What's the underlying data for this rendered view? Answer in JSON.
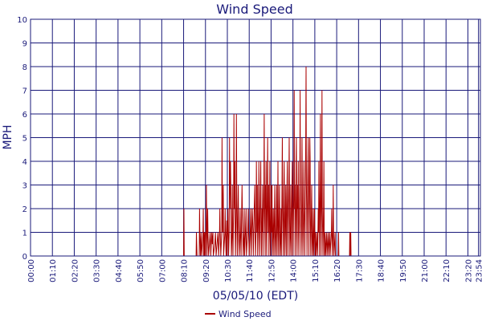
{
  "chart_data": {
    "type": "line",
    "title": "Wind Speed",
    "xlabel": "05/05/10 (EDT)",
    "ylabel": "MPH",
    "ylim": [
      0,
      10
    ],
    "yticks": [
      "0",
      "1",
      "2",
      "3",
      "4",
      "5",
      "6",
      "7",
      "8",
      "9",
      "10"
    ],
    "xticks": [
      "00:00",
      "01:10",
      "02:20",
      "03:30",
      "04:40",
      "05:50",
      "07:00",
      "08:10",
      "09:20",
      "10:30",
      "11:40",
      "12:50",
      "14:00",
      "15:10",
      "16:20",
      "17:30",
      "18:40",
      "19:50",
      "21:00",
      "22:10",
      "23:20",
      "23:54"
    ],
    "grid": true,
    "legend": "bottom-center",
    "colors": {
      "line": "#aa0000",
      "grid": "#1a1a7a",
      "text": "#1a1a7a"
    },
    "series": [
      {
        "name": "Wind Speed",
        "x_unit": "minutes since 00:00",
        "points": [
          [
            0,
            0
          ],
          [
            490,
            0
          ],
          [
            491,
            2
          ],
          [
            492,
            0
          ],
          [
            530,
            0
          ],
          [
            531,
            1
          ],
          [
            533,
            0
          ],
          [
            540,
            0
          ],
          [
            541,
            2
          ],
          [
            542,
            1
          ],
          [
            544,
            0
          ],
          [
            546,
            1
          ],
          [
            548,
            0
          ],
          [
            552,
            1
          ],
          [
            553,
            2
          ],
          [
            554,
            0
          ],
          [
            556,
            1
          ],
          [
            557,
            0
          ],
          [
            559,
            1
          ],
          [
            560,
            0
          ],
          [
            562,
            1.5
          ],
          [
            563,
            3
          ],
          [
            564,
            1
          ],
          [
            565,
            0
          ],
          [
            567,
            2
          ],
          [
            568,
            1
          ],
          [
            570,
            0
          ],
          [
            575,
            1
          ],
          [
            577,
            0
          ],
          [
            580,
            1
          ],
          [
            582,
            0.5
          ],
          [
            584,
            1
          ],
          [
            585,
            0
          ],
          [
            590,
            0.5
          ],
          [
            592,
            1
          ],
          [
            594,
            0
          ],
          [
            600,
            1
          ],
          [
            602,
            0
          ],
          [
            605,
            1
          ],
          [
            606,
            2
          ],
          [
            607,
            1
          ],
          [
            609,
            0
          ],
          [
            612,
            1
          ],
          [
            613,
            5
          ],
          [
            614,
            2
          ],
          [
            615,
            1
          ],
          [
            617,
            3
          ],
          [
            618,
            0
          ],
          [
            622,
            1
          ],
          [
            623,
            2
          ],
          [
            624,
            1
          ],
          [
            626,
            0
          ],
          [
            628,
            1.5
          ],
          [
            629,
            0
          ],
          [
            632,
            2
          ],
          [
            633,
            1
          ],
          [
            634,
            0
          ],
          [
            636,
            1
          ],
          [
            637,
            5
          ],
          [
            638,
            2
          ],
          [
            640,
            4
          ],
          [
            641,
            3
          ],
          [
            642,
            1
          ],
          [
            643,
            0
          ],
          [
            645,
            1
          ],
          [
            646,
            3
          ],
          [
            647,
            1
          ],
          [
            648,
            0
          ],
          [
            650,
            2
          ],
          [
            651,
            6
          ],
          [
            652,
            3
          ],
          [
            653,
            2
          ],
          [
            654,
            4
          ],
          [
            655,
            1
          ],
          [
            656,
            0
          ],
          [
            658,
            2
          ],
          [
            659,
            6
          ],
          [
            660,
            3
          ],
          [
            661,
            1
          ],
          [
            662,
            0
          ],
          [
            664,
            2
          ],
          [
            665,
            3
          ],
          [
            666,
            1
          ],
          [
            668,
            0
          ],
          [
            670,
            1
          ],
          [
            671,
            2
          ],
          [
            672,
            1
          ],
          [
            674,
            0
          ],
          [
            676,
            2
          ],
          [
            677,
            3
          ],
          [
            678,
            2
          ],
          [
            679,
            1
          ],
          [
            681,
            0
          ],
          [
            683,
            1
          ],
          [
            684,
            2
          ],
          [
            685,
            0
          ],
          [
            688,
            1
          ],
          [
            690,
            2
          ],
          [
            691,
            0
          ],
          [
            695,
            1
          ],
          [
            697,
            2
          ],
          [
            698,
            1
          ],
          [
            700,
            0
          ],
          [
            703,
            1
          ],
          [
            705,
            2
          ],
          [
            706,
            0
          ],
          [
            710,
            2
          ],
          [
            712,
            1
          ],
          [
            713,
            0
          ],
          [
            716,
            2
          ],
          [
            718,
            3
          ],
          [
            719,
            1
          ],
          [
            720,
            0
          ],
          [
            722,
            1
          ],
          [
            723,
            4
          ],
          [
            724,
            2
          ],
          [
            725,
            1
          ],
          [
            726,
            3
          ],
          [
            727,
            0
          ],
          [
            730,
            2
          ],
          [
            731,
            4
          ],
          [
            732,
            1
          ],
          [
            733,
            0
          ],
          [
            735,
            2
          ],
          [
            736,
            3
          ],
          [
            737,
            4
          ],
          [
            738,
            1
          ],
          [
            739,
            0
          ],
          [
            741,
            2
          ],
          [
            742,
            1
          ],
          [
            743,
            3
          ],
          [
            744,
            0
          ],
          [
            746,
            2
          ],
          [
            747,
            3
          ],
          [
            748,
            6
          ],
          [
            749,
            2
          ],
          [
            750,
            1
          ],
          [
            751,
            0
          ],
          [
            752,
            3
          ],
          [
            753,
            2
          ],
          [
            754,
            4
          ],
          [
            755,
            1
          ],
          [
            756,
            0
          ],
          [
            758,
            3
          ],
          [
            759,
            5
          ],
          [
            760,
            2
          ],
          [
            761,
            1
          ],
          [
            762,
            3
          ],
          [
            763,
            0
          ],
          [
            765,
            2
          ],
          [
            766,
            4
          ],
          [
            767,
            1
          ],
          [
            768,
            0
          ],
          [
            770,
            2
          ],
          [
            771,
            3
          ],
          [
            772,
            1
          ],
          [
            773,
            3
          ],
          [
            774,
            0
          ],
          [
            776,
            1
          ],
          [
            777,
            2
          ],
          [
            778,
            1
          ],
          [
            779,
            0
          ],
          [
            781,
            2
          ],
          [
            782,
            3
          ],
          [
            783,
            1
          ],
          [
            784,
            0
          ],
          [
            786,
            1
          ],
          [
            787,
            2
          ],
          [
            788,
            3
          ],
          [
            789,
            0
          ],
          [
            791,
            2
          ],
          [
            792,
            4
          ],
          [
            793,
            1
          ],
          [
            794,
            0
          ],
          [
            796,
            2
          ],
          [
            797,
            3
          ],
          [
            798,
            1
          ],
          [
            799,
            0
          ],
          [
            801,
            1
          ],
          [
            802,
            2
          ],
          [
            803,
            0
          ],
          [
            805,
            3
          ],
          [
            806,
            5
          ],
          [
            807,
            2
          ],
          [
            808,
            1
          ],
          [
            809,
            0
          ],
          [
            811,
            3
          ],
          [
            812,
            4
          ],
          [
            813,
            1
          ],
          [
            814,
            0
          ],
          [
            816,
            2
          ],
          [
            817,
            3
          ],
          [
            818,
            1
          ],
          [
            819,
            0
          ],
          [
            821,
            3
          ],
          [
            822,
            4
          ],
          [
            823,
            2
          ],
          [
            824,
            0
          ],
          [
            826,
            2
          ],
          [
            827,
            3
          ],
          [
            828,
            5
          ],
          [
            829,
            2
          ],
          [
            830,
            0
          ],
          [
            832,
            1
          ],
          [
            833,
            3
          ],
          [
            834,
            1
          ],
          [
            835,
            0
          ],
          [
            837,
            3
          ],
          [
            838,
            4
          ],
          [
            839,
            2
          ],
          [
            840,
            0
          ],
          [
            842,
            2
          ],
          [
            843,
            3
          ],
          [
            844,
            7
          ],
          [
            845,
            2
          ],
          [
            846,
            3
          ],
          [
            847,
            0
          ],
          [
            849,
            2
          ],
          [
            850,
            4
          ],
          [
            851,
            5
          ],
          [
            852,
            1
          ],
          [
            853,
            0
          ],
          [
            855,
            3
          ],
          [
            856,
            2
          ],
          [
            857,
            4
          ],
          [
            858,
            1
          ],
          [
            859,
            0
          ],
          [
            861,
            2
          ],
          [
            862,
            3
          ],
          [
            863,
            7
          ],
          [
            864,
            2
          ],
          [
            865,
            1
          ],
          [
            866,
            0
          ],
          [
            868,
            2
          ],
          [
            869,
            5
          ],
          [
            870,
            3
          ],
          [
            871,
            1
          ],
          [
            872,
            0
          ],
          [
            874,
            2
          ],
          [
            875,
            4
          ],
          [
            876,
            2
          ],
          [
            877,
            1
          ],
          [
            878,
            0
          ],
          [
            880,
            3
          ],
          [
            881,
            5
          ],
          [
            882,
            8
          ],
          [
            883,
            3
          ],
          [
            884,
            2
          ],
          [
            885,
            0
          ],
          [
            887,
            3
          ],
          [
            888,
            4
          ],
          [
            889,
            5
          ],
          [
            890,
            2
          ],
          [
            891,
            0
          ],
          [
            893,
            3
          ],
          [
            894,
            5
          ],
          [
            895,
            4
          ],
          [
            896,
            1
          ],
          [
            897,
            0
          ],
          [
            899,
            2
          ],
          [
            900,
            3
          ],
          [
            901,
            1
          ],
          [
            902,
            0
          ],
          [
            904,
            1
          ],
          [
            905,
            2
          ],
          [
            906,
            0
          ],
          [
            908,
            1
          ],
          [
            909,
            2
          ],
          [
            910,
            1
          ],
          [
            911,
            0
          ],
          [
            913,
            1
          ],
          [
            914,
            0
          ],
          [
            918,
            1
          ],
          [
            919,
            0
          ],
          [
            921,
            2
          ],
          [
            922,
            1
          ],
          [
            923,
            4
          ],
          [
            924,
            2
          ],
          [
            925,
            0
          ],
          [
            927,
            3
          ],
          [
            928,
            6
          ],
          [
            929,
            2
          ],
          [
            930,
            0
          ],
          [
            932,
            3
          ],
          [
            933,
            7
          ],
          [
            934,
            2
          ],
          [
            935,
            1
          ],
          [
            936,
            0
          ],
          [
            938,
            2
          ],
          [
            939,
            4
          ],
          [
            940,
            1
          ],
          [
            941,
            0
          ],
          [
            943,
            1
          ],
          [
            944,
            0
          ],
          [
            948,
            1
          ],
          [
            949,
            0
          ],
          [
            953,
            1
          ],
          [
            954,
            0
          ],
          [
            958,
            1
          ],
          [
            959,
            0
          ],
          [
            963,
            1
          ],
          [
            964,
            2
          ],
          [
            965,
            1
          ],
          [
            966,
            0
          ],
          [
            968,
            1
          ],
          [
            969,
            3
          ],
          [
            970,
            1
          ],
          [
            971,
            0
          ],
          [
            975,
            1
          ],
          [
            976,
            0
          ],
          [
            985,
            0
          ],
          [
            986,
            1
          ],
          [
            987,
            0
          ],
          [
            1021,
            0
          ],
          [
            1022,
            1
          ],
          [
            1023,
            0
          ],
          [
            1025,
            1
          ],
          [
            1026,
            0
          ],
          [
            1440,
            0
          ]
        ]
      }
    ]
  }
}
